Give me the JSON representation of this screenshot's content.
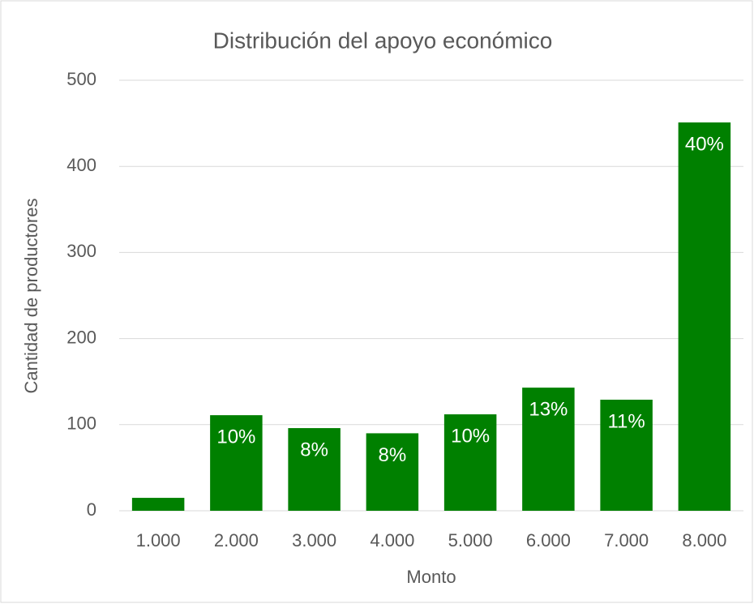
{
  "chart_data": {
    "type": "bar",
    "title": "Distribución del apoyo económico",
    "x_label": "Monto",
    "y_label": "Cantidad de productores",
    "categories": [
      "1.000",
      "2.000",
      "3.000",
      "4.000",
      "5.000",
      "6.000",
      "7.000",
      "8.000"
    ],
    "values": [
      15,
      111,
      96,
      90,
      112,
      143,
      129,
      451
    ],
    "share_labels": [
      null,
      "10%",
      "8%",
      "8%",
      "10%",
      "13%",
      "11%",
      "40%"
    ],
    "color": "#008000",
    "ylim": [
      0,
      500
    ],
    "yticks": [
      0,
      100,
      200,
      300,
      400,
      500
    ],
    "grid": true
  }
}
